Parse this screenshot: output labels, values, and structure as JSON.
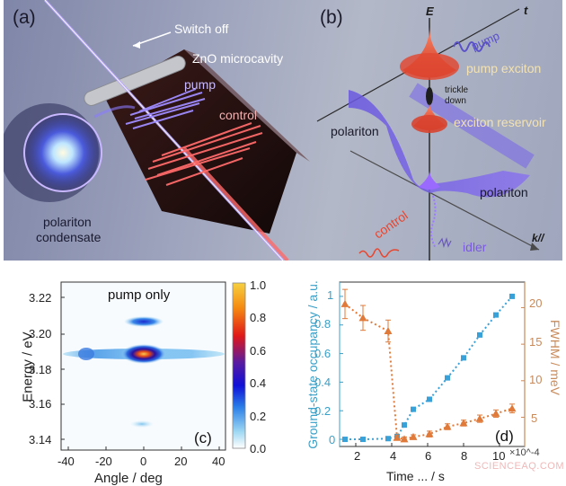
{
  "figure": {
    "panel_a": {
      "label": "(a)",
      "annotations": {
        "switch_off": "Switch off",
        "microcavity": "ZnO microcavity",
        "pump": "pump",
        "control": "control",
        "condensate_line1": "polariton",
        "condensate_line2": "condensate"
      }
    },
    "panel_b": {
      "label": "(b)",
      "axes": {
        "energy": "E",
        "time": "t",
        "momentum": "k//"
      },
      "annotations": {
        "pump": "pump",
        "pump_exciton": "pump exciton",
        "trickle_line1": "trickle",
        "trickle_line2": "down",
        "exciton_reservoir": "exciton reservoir",
        "polariton_left": "polariton",
        "polariton_right": "polariton",
        "control": "control",
        "idler": "idler"
      }
    },
    "watermark": "SCIENCEAQ.COM"
  },
  "chart_data": [
    {
      "panel": "(c)",
      "type": "heatmap",
      "title": "pump only",
      "xlabel": "Angle / deg",
      "ylabel": "Energy / eV",
      "xlim": [
        -43,
        43
      ],
      "ylim": [
        3.133,
        3.23
      ],
      "xticks": [
        "-40",
        "-20",
        "0",
        "20",
        "40"
      ],
      "yticks": [
        "3.14",
        "3.16",
        "3.18",
        "3.20",
        "3.22"
      ],
      "colorbar": {
        "min": 0.0,
        "max": 1.0,
        "ticks": [
          "0.0",
          "0.2",
          "0.4",
          "0.6",
          "0.8",
          "1.0"
        ],
        "colormap": "white-lightblue-blue-purple-red-yellow"
      },
      "features": [
        {
          "energy": 3.178,
          "angle_range": [
            -43,
            43
          ],
          "peak_angle": 0,
          "peak_intensity": 0.95,
          "note": "main condensate line, weak side lobes at about ±30 deg"
        },
        {
          "energy": 3.205,
          "angle_range": [
            -8,
            8
          ],
          "peak_angle": 0,
          "peak_intensity": 0.35
        },
        {
          "energy": 3.148,
          "angle_range": [
            -5,
            5
          ],
          "peak_angle": 0,
          "peak_intensity": 0.1
        }
      ],
      "grid": false
    },
    {
      "panel": "(d)",
      "type": "line",
      "xlabel": "Time ... / s",
      "x_multiplier": "×10^-4",
      "ylabel_left": "Ground-state occupancy / a.u.",
      "ylabel_right": "FWHM / meV",
      "xlim": [
        1.1,
        11.4
      ],
      "ylim_left": [
        -0.05,
        1.1
      ],
      "ylim_right": [
        1,
        23.5
      ],
      "xticks": [
        "2",
        "4",
        "6",
        "8",
        "10"
      ],
      "yticks_left": [
        "0",
        "0.2",
        "0.4",
        "0.6",
        "0.8",
        "1"
      ],
      "yticks_right": [
        "5",
        "10",
        "15",
        "20"
      ],
      "series": [
        {
          "name": "Ground-state occupancy",
          "axis": "left",
          "color": "#3aa0d8",
          "marker": "square",
          "x": [
            1.4,
            2.4,
            3.8,
            4.3,
            4.7,
            5.2,
            6.1,
            7.1,
            8.0,
            8.9,
            9.8,
            10.7
          ],
          "y": [
            0.0,
            0.0,
            0.005,
            0.02,
            0.1,
            0.21,
            0.28,
            0.43,
            0.57,
            0.73,
            0.87,
            1.0
          ]
        },
        {
          "name": "FWHM",
          "axis": "right",
          "color": "#e07a3a",
          "marker": "triangle",
          "x": [
            1.4,
            2.4,
            3.8,
            4.3,
            4.7,
            5.2,
            6.1,
            7.1,
            8.0,
            8.9,
            9.8,
            10.7
          ],
          "y": [
            20.5,
            18.6,
            16.8,
            2.2,
            2.0,
            2.3,
            2.7,
            3.7,
            4.2,
            4.8,
            5.5,
            6.2
          ],
          "error": [
            2.0,
            1.7,
            1.5,
            0.3,
            0.3,
            0.3,
            0.4,
            0.4,
            0.4,
            0.5,
            0.5,
            0.6
          ]
        }
      ],
      "grid": false
    }
  ]
}
